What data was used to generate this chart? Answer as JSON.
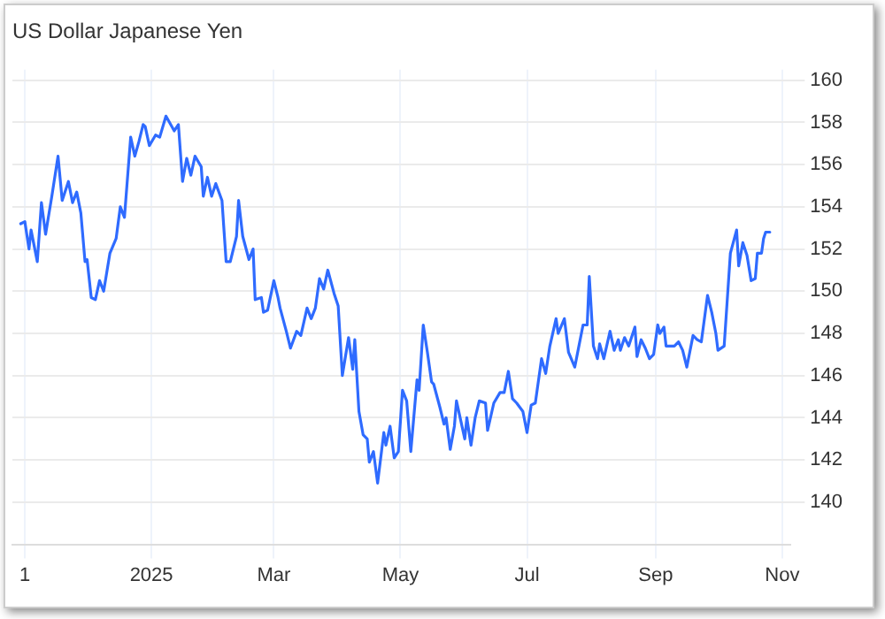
{
  "chart_data": {
    "type": "line",
    "title": "US Dollar Japanese Yen",
    "x": [
      "2024-10-30",
      "2024-11-01",
      "2024-11-03",
      "2024-11-04",
      "2024-11-07",
      "2024-11-09",
      "2024-11-11",
      "2024-11-14",
      "2024-11-17",
      "2024-11-19",
      "2024-11-22",
      "2024-11-24",
      "2024-11-26",
      "2024-11-28",
      "2024-11-30",
      "2024-12-01",
      "2024-12-03",
      "2024-12-05",
      "2024-12-07",
      "2024-12-09",
      "2024-12-12",
      "2024-12-15",
      "2024-12-17",
      "2024-12-19",
      "2024-12-22",
      "2024-12-24",
      "2024-12-26",
      "2024-12-28",
      "2024-12-29",
      "2024-12-31",
      "2025-01-03",
      "2025-01-05",
      "2025-01-08",
      "2025-01-12",
      "2025-01-14",
      "2025-01-16",
      "2025-01-18",
      "2025-01-20",
      "2025-01-22",
      "2025-01-25",
      "2025-01-26",
      "2025-01-28",
      "2025-01-30",
      "2025-02-01",
      "2025-02-04",
      "2025-02-06",
      "2025-02-08",
      "2025-02-11",
      "2025-02-12",
      "2025-02-14",
      "2025-02-17",
      "2025-02-19",
      "2025-02-20",
      "2025-02-23",
      "2025-02-24",
      "2025-02-26",
      "2025-03-01",
      "2025-03-03",
      "2025-03-04",
      "2025-03-07",
      "2025-03-09",
      "2025-03-12",
      "2025-03-14",
      "2025-03-17",
      "2025-03-19",
      "2025-03-21",
      "2025-03-23",
      "2025-03-25",
      "2025-03-27",
      "2025-03-30",
      "2025-04-01",
      "2025-04-03",
      "2025-04-06",
      "2025-04-08",
      "2025-04-09",
      "2025-04-11",
      "2025-04-13",
      "2025-04-15",
      "2025-04-16",
      "2025-04-18",
      "2025-04-20",
      "2025-04-23",
      "2025-04-24",
      "2025-04-26",
      "2025-04-28",
      "2025-04-30",
      "2025-05-02",
      "2025-05-04",
      "2025-05-06",
      "2025-05-09",
      "2025-05-10",
      "2025-05-12",
      "2025-05-14",
      "2025-05-16",
      "2025-05-17",
      "2025-05-20",
      "2025-05-22",
      "2025-05-23",
      "2025-05-25",
      "2025-05-27",
      "2025-05-28",
      "2025-05-30",
      "2025-06-01",
      "2025-06-02",
      "2025-06-04",
      "2025-06-06",
      "2025-06-08",
      "2025-06-11",
      "2025-06-12",
      "2025-06-15",
      "2025-06-18",
      "2025-06-20",
      "2025-06-22",
      "2025-06-24",
      "2025-06-26",
      "2025-06-29",
      "2025-07-01",
      "2025-07-03",
      "2025-07-05",
      "2025-07-08",
      "2025-07-10",
      "2025-07-12",
      "2025-07-15",
      "2025-07-16",
      "2025-07-19",
      "2025-07-21",
      "2025-07-24",
      "2025-07-26",
      "2025-07-28",
      "2025-07-30",
      "2025-07-31",
      "2025-08-02",
      "2025-08-04",
      "2025-08-05",
      "2025-08-07",
      "2025-08-10",
      "2025-08-12",
      "2025-08-14",
      "2025-08-15",
      "2025-08-17",
      "2025-08-19",
      "2025-08-22",
      "2025-08-23",
      "2025-08-25",
      "2025-08-27",
      "2025-08-29",
      "2025-08-31",
      "2025-09-02",
      "2025-09-03",
      "2025-09-05",
      "2025-09-06",
      "2025-09-10",
      "2025-09-12",
      "2025-09-14",
      "2025-09-16",
      "2025-09-19",
      "2025-09-21",
      "2025-09-23",
      "2025-09-26",
      "2025-09-28",
      "2025-09-30",
      "2025-10-01",
      "2025-10-04",
      "2025-10-07",
      "2025-10-10",
      "2025-10-11",
      "2025-10-13",
      "2025-10-15",
      "2025-10-17",
      "2025-10-19",
      "2025-10-20",
      "2025-10-22",
      "2025-10-23",
      "2025-10-24",
      "2025-10-26"
    ],
    "series": [
      {
        "color": "#2f6bff",
        "values": [
          153.2,
          153.3,
          152.0,
          152.9,
          151.4,
          154.2,
          152.7,
          154.5,
          156.4,
          154.3,
          155.2,
          154.2,
          154.7,
          153.7,
          151.4,
          151.5,
          149.7,
          149.6,
          150.5,
          150.0,
          151.8,
          152.5,
          154.0,
          153.5,
          157.3,
          156.4,
          157.1,
          157.9,
          157.8,
          156.9,
          157.4,
          157.3,
          158.3,
          157.6,
          157.9,
          155.2,
          156.3,
          155.5,
          156.4,
          155.9,
          154.5,
          155.4,
          154.5,
          155.1,
          154.3,
          151.4,
          151.4,
          152.6,
          154.3,
          152.6,
          151.5,
          152.0,
          149.6,
          149.7,
          149.0,
          149.1,
          150.5,
          149.7,
          149.2,
          148.1,
          147.3,
          148.1,
          147.9,
          149.2,
          148.7,
          149.2,
          150.6,
          150.1,
          151.0,
          149.9,
          149.3,
          146.0,
          147.8,
          146.3,
          147.7,
          144.3,
          143.2,
          143.0,
          141.9,
          142.4,
          140.9,
          143.3,
          142.7,
          143.6,
          142.1,
          142.4,
          145.3,
          144.8,
          142.4,
          145.8,
          145.3,
          148.4,
          147.1,
          145.7,
          145.6,
          144.5,
          143.7,
          144.0,
          142.5,
          143.6,
          144.8,
          143.9,
          143.0,
          144.0,
          142.7,
          144.0,
          144.8,
          144.7,
          143.4,
          144.7,
          145.2,
          145.2,
          146.2,
          144.9,
          144.7,
          144.3,
          143.3,
          144.6,
          144.7,
          146.8,
          146.1,
          147.4,
          148.7,
          148.0,
          148.7,
          147.1,
          146.4,
          147.4,
          148.4,
          148.4,
          150.7,
          147.4,
          146.8,
          147.5,
          146.8,
          148.1,
          147.2,
          147.7,
          147.2,
          147.8,
          147.4,
          148.3,
          146.9,
          147.7,
          147.3,
          146.8,
          147.0,
          148.4,
          148.0,
          148.3,
          147.4,
          147.4,
          147.6,
          147.2,
          146.4,
          147.9,
          147.7,
          147.6,
          149.8,
          149.0,
          148.0,
          147.2,
          147.4,
          151.8,
          152.9,
          151.2,
          152.3,
          151.7,
          150.5,
          150.6,
          151.8,
          151.8,
          152.5,
          152.8,
          152.8
        ]
      }
    ],
    "xlim": [
      "2024-10-26",
      "2025-11-05"
    ],
    "xticks": [
      {
        "value": "2024-11-01",
        "label": "1"
      },
      {
        "value": "2025-01-01",
        "label": "2025"
      },
      {
        "value": "2025-03-01",
        "label": "Mar"
      },
      {
        "value": "2025-05-01",
        "label": "May"
      },
      {
        "value": "2025-07-01",
        "label": "Jul"
      },
      {
        "value": "2025-09-01",
        "label": "Sep"
      },
      {
        "value": "2025-11-01",
        "label": "Nov"
      }
    ],
    "ylim": [
      138,
      160.5
    ],
    "yticks": [
      140,
      142,
      144,
      146,
      148,
      150,
      152,
      154,
      156,
      158,
      160
    ],
    "grid": true,
    "legend": false,
    "marker": "none",
    "line_style": "solid"
  }
}
